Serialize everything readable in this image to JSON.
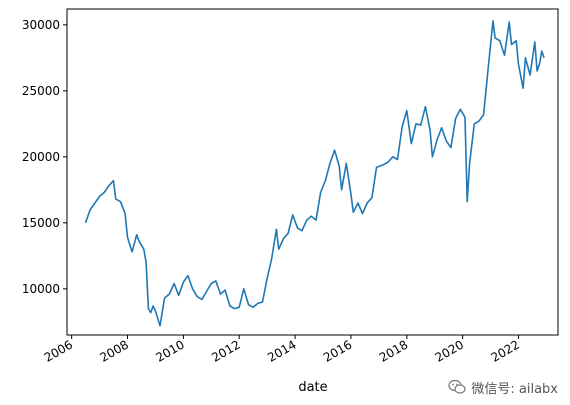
{
  "chart_data": {
    "type": "line",
    "title": "",
    "xlabel": "date",
    "ylabel": "",
    "x_ticks": [
      "2006",
      "2008",
      "2010",
      "2012",
      "2014",
      "2016",
      "2018",
      "2020",
      "2022"
    ],
    "y_ticks": [
      "10000",
      "15000",
      "20000",
      "25000",
      "30000"
    ],
    "xlim": [
      "2005-11-01",
      "2023-06-01"
    ],
    "ylim": [
      6500,
      31200
    ],
    "grid": false,
    "line_color": "#1f77b4",
    "series": [
      {
        "points": [
          [
            "2006-07-01",
            15000
          ],
          [
            "2006-09-01",
            16000
          ],
          [
            "2006-11-01",
            16500
          ],
          [
            "2007-01-01",
            17000
          ],
          [
            "2007-03-01",
            17300
          ],
          [
            "2007-05-01",
            17800
          ],
          [
            "2007-07-01",
            18200
          ],
          [
            "2007-08-01",
            16800
          ],
          [
            "2007-10-01",
            16600
          ],
          [
            "2007-12-01",
            15700
          ],
          [
            "2008-01-01",
            13900
          ],
          [
            "2008-03-01",
            12800
          ],
          [
            "2008-05-01",
            14100
          ],
          [
            "2008-06-01",
            13600
          ],
          [
            "2008-08-01",
            13000
          ],
          [
            "2008-09-01",
            12000
          ],
          [
            "2008-10-01",
            8500
          ],
          [
            "2008-11-01",
            8200
          ],
          [
            "2008-12-01",
            8700
          ],
          [
            "2009-01-01",
            8300
          ],
          [
            "2009-03-01",
            7200
          ],
          [
            "2009-05-01",
            9300
          ],
          [
            "2009-07-01",
            9600
          ],
          [
            "2009-09-01",
            10400
          ],
          [
            "2009-11-01",
            9500
          ],
          [
            "2010-01-01",
            10500
          ],
          [
            "2010-03-01",
            11000
          ],
          [
            "2010-05-01",
            10000
          ],
          [
            "2010-07-01",
            9400
          ],
          [
            "2010-09-01",
            9200
          ],
          [
            "2010-11-01",
            9800
          ],
          [
            "2011-01-01",
            10400
          ],
          [
            "2011-03-01",
            10600
          ],
          [
            "2011-05-01",
            9600
          ],
          [
            "2011-07-01",
            9900
          ],
          [
            "2011-09-01",
            8700
          ],
          [
            "2011-11-01",
            8500
          ],
          [
            "2012-01-01",
            8600
          ],
          [
            "2012-03-01",
            10000
          ],
          [
            "2012-05-01",
            8800
          ],
          [
            "2012-07-01",
            8600
          ],
          [
            "2012-09-01",
            8900
          ],
          [
            "2012-11-01",
            9000
          ],
          [
            "2013-01-01",
            10800
          ],
          [
            "2013-03-01",
            12300
          ],
          [
            "2013-05-01",
            14500
          ],
          [
            "2013-06-01",
            13000
          ],
          [
            "2013-08-01",
            13800
          ],
          [
            "2013-10-01",
            14200
          ],
          [
            "2013-12-01",
            15600
          ],
          [
            "2014-02-01",
            14600
          ],
          [
            "2014-04-01",
            14400
          ],
          [
            "2014-06-01",
            15200
          ],
          [
            "2014-08-01",
            15500
          ],
          [
            "2014-10-01",
            15200
          ],
          [
            "2014-12-01",
            17300
          ],
          [
            "2015-02-01",
            18200
          ],
          [
            "2015-04-01",
            19500
          ],
          [
            "2015-06-01",
            20500
          ],
          [
            "2015-08-01",
            19300
          ],
          [
            "2015-09-01",
            17500
          ],
          [
            "2015-11-01",
            19500
          ],
          [
            "2016-01-01",
            17200
          ],
          [
            "2016-02-01",
            15800
          ],
          [
            "2016-04-01",
            16500
          ],
          [
            "2016-06-01",
            15700
          ],
          [
            "2016-08-01",
            16500
          ],
          [
            "2016-10-01",
            16900
          ],
          [
            "2016-12-01",
            19200
          ],
          [
            "2017-03-01",
            19400
          ],
          [
            "2017-05-01",
            19600
          ],
          [
            "2017-07-01",
            20000
          ],
          [
            "2017-09-01",
            19800
          ],
          [
            "2017-11-01",
            22300
          ],
          [
            "2018-01-01",
            23500
          ],
          [
            "2018-03-01",
            21000
          ],
          [
            "2018-05-01",
            22500
          ],
          [
            "2018-07-01",
            22400
          ],
          [
            "2018-09-01",
            23800
          ],
          [
            "2018-11-01",
            22000
          ],
          [
            "2018-12-01",
            20000
          ],
          [
            "2019-02-01",
            21300
          ],
          [
            "2019-04-01",
            22200
          ],
          [
            "2019-06-01",
            21200
          ],
          [
            "2019-08-01",
            20700
          ],
          [
            "2019-10-01",
            22900
          ],
          [
            "2019-12-01",
            23600
          ],
          [
            "2020-02-01",
            23000
          ],
          [
            "2020-03-01",
            16600
          ],
          [
            "2020-04-01",
            19500
          ],
          [
            "2020-06-01",
            22500
          ],
          [
            "2020-08-01",
            22700
          ],
          [
            "2020-10-01",
            23200
          ],
          [
            "2020-12-01",
            26800
          ],
          [
            "2021-02-01",
            30300
          ],
          [
            "2021-03-01",
            29000
          ],
          [
            "2021-05-01",
            28800
          ],
          [
            "2021-07-01",
            27700
          ],
          [
            "2021-09-01",
            30200
          ],
          [
            "2021-10-01",
            28500
          ],
          [
            "2021-12-01",
            28800
          ],
          [
            "2022-01-01",
            27000
          ],
          [
            "2022-03-01",
            25200
          ],
          [
            "2022-04-01",
            27500
          ],
          [
            "2022-06-01",
            26200
          ],
          [
            "2022-08-01",
            28700
          ],
          [
            "2022-09-01",
            26500
          ],
          [
            "2022-10-01",
            27000
          ],
          [
            "2022-11-01",
            28000
          ],
          [
            "2022-12-01",
            27500
          ]
        ]
      }
    ]
  },
  "watermark": {
    "text": "微信号: ailabx",
    "icon": "wechat-icon"
  }
}
